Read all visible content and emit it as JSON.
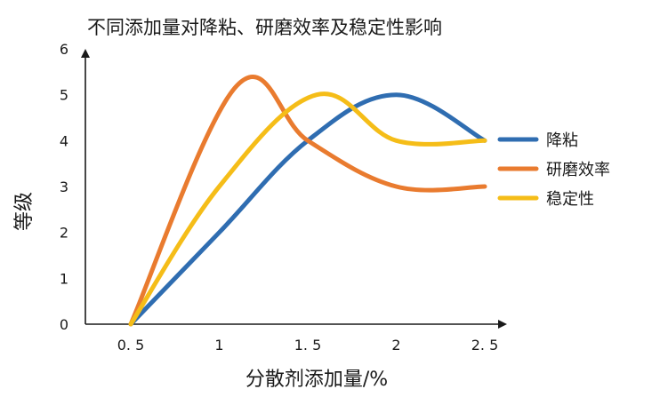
{
  "chart_data": {
    "type": "line",
    "title": "不同添加量对降粘、研磨效率及稳定性影响",
    "xlabel": "分散剂添加量/%",
    "ylabel": "等级",
    "xlim": [
      0.5,
      2.5
    ],
    "ylim": [
      0,
      6
    ],
    "x_ticks": [
      0.5,
      1,
      1.5,
      2,
      2.5
    ],
    "x_tick_labels": [
      "0. 5",
      "1",
      "1. 5",
      "2",
      "2. 5"
    ],
    "y_ticks": [
      0,
      1,
      2,
      3,
      4,
      5,
      6
    ],
    "y_tick_labels": [
      "0",
      "1",
      "2",
      "3",
      "4",
      "5",
      "6"
    ],
    "grid": false,
    "legend_position": "right",
    "series": [
      {
        "name": "降粘",
        "color": "#2f6db1",
        "x": [
          0.5,
          1.0,
          1.5,
          2.0,
          2.5
        ],
        "y": [
          0,
          2,
          4,
          5,
          4
        ]
      },
      {
        "name": "研磨效率",
        "color": "#e97b2f",
        "x": [
          0.5,
          1.1,
          1.5,
          2.0,
          2.5
        ],
        "y": [
          0,
          5.2,
          4,
          3,
          3
        ]
      },
      {
        "name": "稳定性",
        "color": "#f5bd18",
        "x": [
          0.5,
          1.0,
          1.55,
          2.0,
          2.5
        ],
        "y": [
          0,
          3,
          5,
          4,
          4
        ]
      }
    ]
  }
}
